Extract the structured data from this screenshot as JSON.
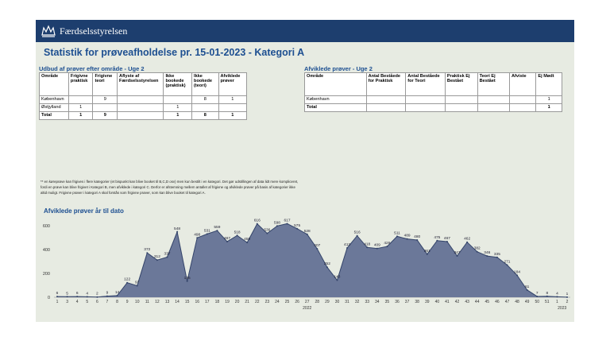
{
  "header": {
    "brand": "Færdselsstyrelsen",
    "title": "Statistik for prøveafholdelse pr. 15-01-2023 - Kategori A"
  },
  "table_left": {
    "title": "Udbud af prøver efter område - Uge 2",
    "columns": [
      "Område",
      "Frigivne praktisk",
      "Frigivne teori",
      "Aflyste af Færdselsstyrelsen",
      "Ikke bookede (praktisk)",
      "Ikke bookede (teori)",
      "Afviklede prøver"
    ],
    "rows": [
      [
        "København",
        null,
        9,
        null,
        null,
        8,
        1
      ],
      [
        "Østjylland",
        1,
        null,
        null,
        1,
        null,
        null
      ],
      [
        "Total",
        1,
        9,
        null,
        1,
        8,
        1
      ]
    ]
  },
  "table_right": {
    "title": "Afviklede prøver - Uge 2",
    "columns": [
      "Område",
      "Antal Beståede for Praktisk",
      "Antal Beståede for Teori",
      "Praktisk Ej Bestået",
      "Teori Ej Bestået",
      "Afviste",
      "Ej Mødt"
    ],
    "rows": [
      [
        "København",
        null,
        null,
        null,
        null,
        null,
        1
      ],
      [
        "Total",
        null,
        null,
        null,
        null,
        null,
        1
      ]
    ]
  },
  "note": "** en køreprøve kan frigives i flere kategorier (et bispunkt kan blive booket til B,C,D osv) men kun bestilt i en kategori. Det gør udstillingen af data lidt mere kompliceret, fordi en prøve kan blive frigivet i Kategori B, men afviklede i kategori C. Derfor er afstemning mellem antallet af frigivne og afviklede prøver på basis af kategorier ikke altid muligt. Frigivne prøver i kategori A skal forstås som frigivne prøver, som kan blive booket til kategori A.",
  "chart_data": {
    "type": "area",
    "title": "Afviklede prøver år til dato",
    "categories": [
      "1",
      "3",
      "4",
      "5",
      "6",
      "7",
      "8",
      "9",
      "10",
      "11",
      "12",
      "13",
      "14",
      "15",
      "16",
      "17",
      "18",
      "19",
      "20",
      "21",
      "22",
      "23",
      "24",
      "25",
      "26",
      "27",
      "28",
      "29",
      "30",
      "31",
      "32",
      "33",
      "34",
      "35",
      "36",
      "37",
      "38",
      "39",
      "40",
      "41",
      "42",
      "43",
      "44",
      "45",
      "46",
      "47",
      "48",
      "49",
      "50",
      "51",
      "1",
      "2"
    ],
    "values": [
      6,
      5,
      6,
      4,
      2,
      9,
      14,
      122,
      97,
      372,
      312,
      337,
      548,
      135,
      498,
      531,
      559,
      467,
      518,
      459,
      616,
      536,
      598,
      617,
      575,
      528,
      407,
      252,
      143,
      413,
      516,
      418,
      409,
      426,
      511,
      489,
      480,
      361,
      475,
      467,
      347,
      462,
      382,
      346,
      335,
      271,
      184,
      61,
      7,
      8,
      4,
      1
    ],
    "years": [
      "2022",
      "2023"
    ],
    "color": "#6b7899",
    "line_color": "#34446a",
    "ylim": [
      0,
      650
    ],
    "yticks": [
      0,
      200,
      400,
      600
    ],
    "grid": false
  }
}
